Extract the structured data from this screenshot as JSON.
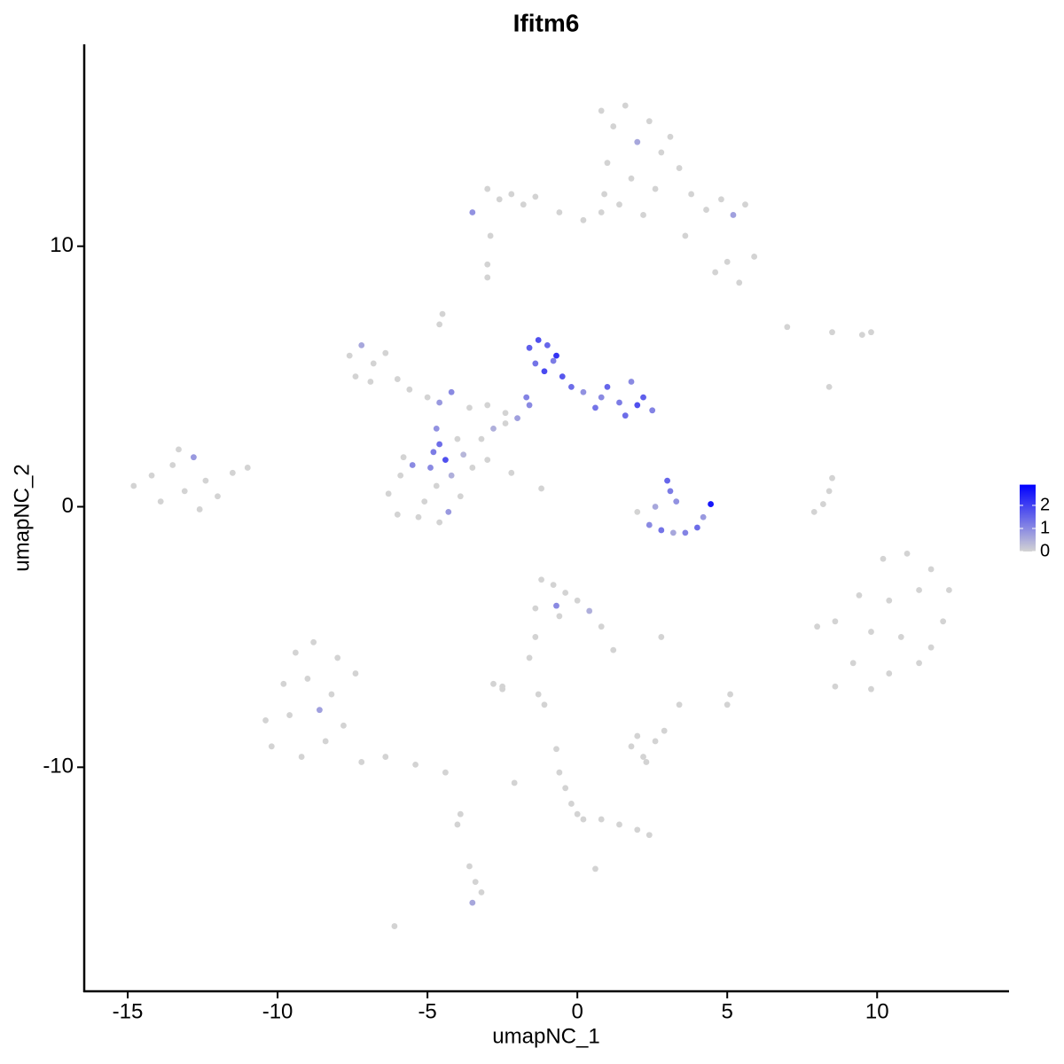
{
  "chart_data": {
    "type": "scatter",
    "title": "Ifitm6",
    "xlabel": "umapNC_1",
    "ylabel": "umapNC_2",
    "xlim": [
      -16.45,
      14.4
    ],
    "ylim": [
      -18.6,
      17.75
    ],
    "xticks": [
      -15,
      -10,
      -5,
      0,
      5,
      10
    ],
    "yticks": [
      -10,
      0,
      10
    ],
    "colorbar": {
      "lim": [
        0,
        2.9
      ],
      "ticks": [
        0,
        1,
        2
      ],
      "low": "#d3d3d3",
      "high": "#0000ff"
    },
    "series": [
      {
        "x": [
          -14.8,
          -14.2,
          -13.9,
          -13.5,
          -13.1,
          -12.8,
          -12.4,
          -12.0,
          -11.5,
          -11.0,
          -13.3,
          -12.6
        ],
        "values": [
          0.8,
          1.2,
          0.2,
          1.6,
          0.6,
          1.9,
          1.0,
          0.4,
          1.3,
          1.5,
          2.2,
          -0.1
        ],
        "expression": [
          0,
          0,
          0,
          0,
          0,
          0.8,
          0,
          0,
          0,
          0,
          0,
          0
        ]
      },
      {
        "x": [
          0.8,
          1.2,
          1.6,
          2.0,
          2.4,
          2.8,
          3.1,
          1.0,
          1.8,
          2.6,
          1.4,
          2.2,
          3.4,
          0.9
        ],
        "values": [
          15.2,
          14.6,
          15.4,
          14.0,
          14.8,
          13.6,
          14.2,
          13.2,
          12.6,
          12.2,
          11.6,
          11.2,
          13.0,
          12.0
        ],
        "expression": [
          0,
          0,
          0,
          0.6,
          0,
          0,
          0,
          0,
          0,
          0,
          0,
          0,
          0,
          0
        ]
      },
      {
        "x": [
          3.8,
          4.3,
          4.8,
          5.2,
          5.6,
          5.9,
          5.0,
          4.6,
          5.4,
          3.6
        ],
        "values": [
          12.0,
          11.4,
          11.8,
          11.2,
          11.6,
          9.6,
          9.4,
          9.0,
          8.6,
          10.4
        ],
        "expression": [
          0,
          0,
          0,
          0.7,
          0,
          0,
          0,
          0,
          0,
          0
        ]
      },
      {
        "x": [
          -3.5,
          -3.0,
          -2.6,
          -2.2,
          -1.8,
          -1.4,
          -0.6,
          0.2,
          0.8,
          -2.9
        ],
        "values": [
          11.3,
          12.2,
          11.8,
          12.0,
          11.6,
          11.9,
          11.3,
          11.0,
          11.3,
          10.4
        ],
        "expression": [
          0.9,
          0,
          0,
          0,
          0,
          0,
          0,
          0,
          0,
          0
        ]
      },
      {
        "x": [
          -3.0,
          -3.0,
          -4.5,
          -4.6,
          7.0,
          8.5,
          9.8,
          9.5,
          8.4
        ],
        "values": [
          8.8,
          9.3,
          7.4,
          7.0,
          6.9,
          6.7,
          6.7,
          6.6,
          4.6
        ],
        "expression": [
          0,
          0,
          0,
          0,
          0,
          0,
          0,
          0,
          0
        ]
      },
      {
        "x": [
          -7.6,
          -7.2,
          -6.8,
          -6.4,
          -7.4,
          -6.9,
          -6.0,
          -5.6,
          -5.0,
          -4.6,
          -4.2,
          -3.6,
          -3.0,
          -2.4
        ],
        "values": [
          5.8,
          6.2,
          5.5,
          5.9,
          5.0,
          4.8,
          4.9,
          4.5,
          4.2,
          4.0,
          4.4,
          3.8,
          3.9,
          3.6
        ],
        "expression": [
          0,
          0.6,
          0,
          0,
          0,
          0,
          0,
          0,
          0,
          0.8,
          1.0,
          0,
          0,
          0
        ]
      },
      {
        "x": [
          -4.7,
          -4.6,
          -4.4,
          -4.2,
          -4.8,
          -4.0,
          -3.8,
          -3.5
        ],
        "values": [
          3.0,
          2.4,
          1.8,
          1.2,
          2.1,
          2.6,
          2.0,
          1.5
        ],
        "expression": [
          0.9,
          1.4,
          1.8,
          0.5,
          1.2,
          0,
          0.4,
          0
        ]
      },
      {
        "x": [
          -3.2,
          -2.8,
          -2.4,
          -2.0,
          -1.6,
          -3.0,
          -2.2,
          -1.2
        ],
        "values": [
          2.6,
          3.0,
          3.2,
          3.4,
          3.9,
          1.8,
          1.3,
          0.7
        ],
        "expression": [
          0,
          0.5,
          0,
          0.7,
          1.0,
          0,
          0,
          0
        ]
      },
      {
        "x": [
          -6.3,
          -5.9,
          -5.5,
          -5.1,
          -4.7,
          -4.3,
          -3.9,
          -6.0,
          -5.3,
          -4.6,
          -5.8,
          -4.9
        ],
        "values": [
          0.5,
          1.2,
          1.6,
          0.2,
          0.8,
          -0.2,
          0.4,
          -0.3,
          -0.4,
          -0.6,
          1.9,
          1.5
        ],
        "expression": [
          0,
          0,
          1.0,
          0,
          0,
          0.8,
          0,
          0,
          0,
          0,
          0,
          1.0
        ]
      },
      {
        "x": [
          -1.6,
          -1.3,
          -1.0,
          -0.7,
          -1.4,
          -1.1,
          -0.8,
          -0.5,
          -0.2,
          -1.7,
          0.2,
          0.6,
          1.0,
          1.4,
          1.8,
          2.2,
          2.5,
          1.6,
          2.0,
          0.8
        ],
        "values": [
          6.1,
          6.4,
          6.2,
          5.8,
          5.5,
          5.2,
          5.6,
          5.0,
          4.6,
          4.2,
          4.4,
          3.8,
          4.6,
          4.0,
          4.8,
          4.2,
          3.7,
          3.5,
          3.9,
          4.2
        ],
        "expression": [
          1.6,
          1.8,
          1.5,
          2.2,
          1.3,
          1.9,
          1.2,
          1.7,
          1.4,
          1.1,
          0.9,
          1.3,
          1.5,
          1.2,
          1.0,
          1.6,
          1.1,
          1.4,
          1.8,
          1.0
        ]
      },
      {
        "x": [
          2.0,
          2.4,
          2.8,
          3.2,
          3.6,
          4.0,
          4.2,
          3.0,
          3.1,
          3.3,
          2.6,
          4.45
        ],
        "values": [
          -0.2,
          -0.7,
          -0.9,
          -1.0,
          -1.0,
          -0.8,
          -0.4,
          1.0,
          0.6,
          0.2,
          0.0,
          0.1
        ],
        "expression": [
          0,
          1.0,
          1.3,
          0.6,
          1.1,
          1.4,
          0.8,
          1.5,
          1.2,
          0.9,
          0.6,
          2.6
        ]
      },
      {
        "x": [
          8.5,
          8.4,
          8.2,
          7.9
        ],
        "values": [
          1.1,
          0.6,
          0.1,
          -0.2
        ],
        "expression": [
          0,
          0,
          0,
          0
        ]
      },
      {
        "x": [
          10.2,
          11.0,
          11.8,
          12.4,
          9.4,
          10.4,
          11.4,
          12.2,
          8.6,
          9.8,
          10.8,
          11.8,
          8.0,
          9.2,
          10.4,
          11.4,
          8.6,
          9.8
        ],
        "values": [
          -2.0,
          -1.8,
          -2.4,
          -3.2,
          -3.4,
          -3.6,
          -3.2,
          -4.4,
          -4.4,
          -4.8,
          -5.0,
          -5.4,
          -4.6,
          -6.0,
          -6.4,
          -6.0,
          -6.9,
          -7.0
        ],
        "expression": [
          0,
          0,
          0,
          0,
          0,
          0,
          0,
          0,
          0,
          0,
          0,
          0,
          0,
          0,
          0,
          0,
          0,
          0
        ]
      },
      {
        "x": [
          -1.2,
          -0.8,
          -0.4,
          0.0,
          -1.4,
          -0.6,
          0.4,
          0.8,
          1.2,
          -0.7
        ],
        "values": [
          -2.8,
          -3.0,
          -3.3,
          -3.6,
          -3.9,
          -4.2,
          -4.0,
          -4.6,
          -5.5,
          -3.8
        ],
        "expression": [
          0,
          0,
          0,
          0,
          0,
          0,
          0.5,
          0,
          0,
          1.0
        ]
      },
      {
        "x": [
          -1.4,
          -1.6,
          -2.8,
          -2.5,
          -1.3,
          -1.1,
          2.8,
          5.1,
          5.0,
          3.4
        ],
        "values": [
          -5.0,
          -5.8,
          -6.8,
          -7.0,
          -7.2,
          -7.6,
          -5.0,
          -7.2,
          -7.6,
          -7.6
        ],
        "expression": [
          0,
          0,
          0,
          0,
          0,
          0,
          0,
          0,
          0,
          0
        ]
      },
      {
        "x": [
          -9.4,
          -8.8,
          -8.0,
          -9.8,
          -9.0,
          -8.2,
          -7.4,
          -10.4,
          -9.6,
          -8.6,
          -7.8,
          -10.2,
          -9.2,
          -8.4,
          -7.2,
          -6.4,
          -5.4,
          -4.4
        ],
        "values": [
          -5.6,
          -5.2,
          -5.8,
          -6.8,
          -6.6,
          -7.2,
          -6.4,
          -8.2,
          -8.0,
          -7.8,
          -8.4,
          -9.2,
          -9.6,
          -9.0,
          -9.8,
          -9.6,
          -9.9,
          -10.2
        ],
        "expression": [
          0,
          0,
          0,
          0,
          0,
          0,
          0,
          0,
          0,
          0.7,
          0,
          0,
          0,
          0,
          0,
          0,
          0,
          0
        ]
      },
      {
        "x": [
          1.8,
          2.2,
          2.6,
          2.9,
          2.3,
          2.0
        ],
        "values": [
          -9.2,
          -9.6,
          -9.0,
          -8.6,
          -9.8,
          -8.8
        ],
        "expression": [
          0,
          0,
          0,
          0,
          0,
          0
        ]
      },
      {
        "x": [
          -0.6,
          -0.4,
          -0.2,
          0.0,
          0.2,
          0.8,
          1.4,
          2.0,
          2.4,
          -0.7
        ],
        "values": [
          -10.2,
          -10.8,
          -11.4,
          -11.8,
          -12.0,
          -12.0,
          -12.2,
          -12.4,
          -12.6,
          -9.3
        ],
        "expression": [
          0,
          0,
          0,
          0,
          0,
          0,
          0,
          0,
          0,
          0
        ]
      },
      {
        "x": [
          -3.6,
          -3.4,
          -3.2,
          -3.5,
          -3.9,
          -4.0,
          -6.1,
          0.6,
          -2.1,
          -2.5
        ],
        "values": [
          -13.8,
          -14.4,
          -14.8,
          -15.2,
          -11.8,
          -12.2,
          -16.1,
          -13.9,
          -10.6,
          -6.9
        ],
        "expression": [
          0,
          0,
          0,
          0.6,
          0,
          0,
          0,
          0,
          0,
          0
        ]
      }
    ]
  }
}
